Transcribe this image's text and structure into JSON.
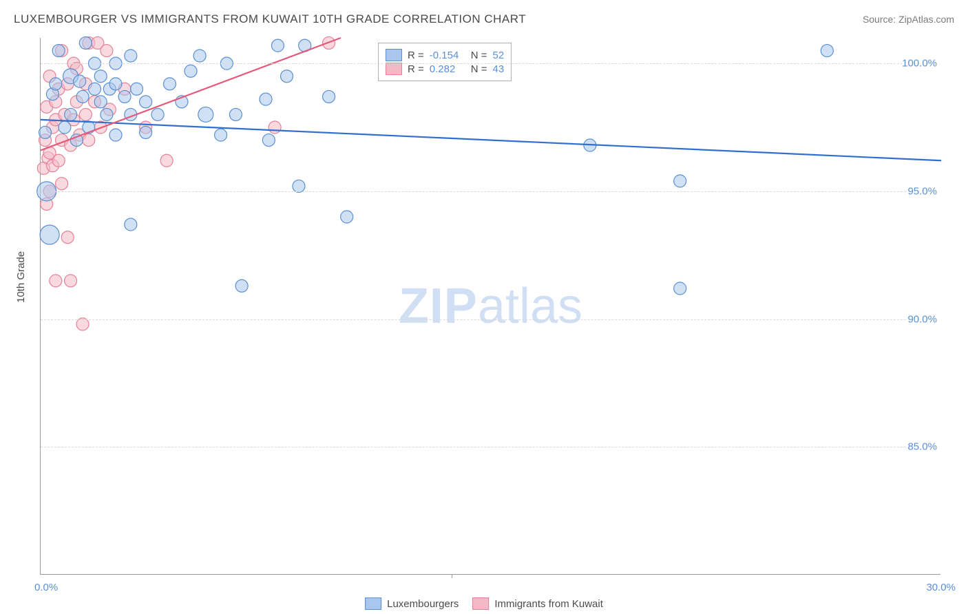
{
  "header": {
    "title": "LUXEMBOURGER VS IMMIGRANTS FROM KUWAIT 10TH GRADE CORRELATION CHART",
    "source": "Source: ZipAtlas.com"
  },
  "ylabel": "10th Grade",
  "watermark": {
    "left": "ZIP",
    "right": "atlas"
  },
  "chart": {
    "type": "scatter",
    "xlim": [
      0,
      30
    ],
    "ylim": [
      80,
      101
    ],
    "xticks": [
      0,
      30
    ],
    "xtick_fmt": [
      "0.0%",
      "30.0%"
    ],
    "yticks": [
      85,
      90,
      95,
      100
    ],
    "ytick_fmt": [
      "85.0%",
      "90.0%",
      "95.0%",
      "100.0%"
    ],
    "xtick_minor": [
      13.7
    ],
    "grid_color": "#d8d8d8",
    "axis_color": "#9a9a9a",
    "background_color": "#ffffff",
    "tick_label_color": "#5b8fd6",
    "series": [
      {
        "name": "Luxembourgers",
        "color_fill": "#a9c7ec",
        "color_stroke": "#5a8fd0",
        "fill_opacity": 0.55,
        "stroke_width": 1.2,
        "marker_r": 9,
        "trend": {
          "x1": 0,
          "y1": 97.8,
          "x2": 30,
          "y2": 96.2,
          "color": "#2f6fd0",
          "width": 2.2
        },
        "stats": {
          "R": "-0.154",
          "N": "52"
        },
        "points": [
          {
            "x": 0.2,
            "y": 95.0,
            "r": 14
          },
          {
            "x": 0.3,
            "y": 93.3,
            "r": 14
          },
          {
            "x": 0.15,
            "y": 97.3,
            "r": 9
          },
          {
            "x": 0.4,
            "y": 98.8,
            "r": 9
          },
          {
            "x": 0.5,
            "y": 99.2,
            "r": 9
          },
          {
            "x": 0.6,
            "y": 100.5,
            "r": 9
          },
          {
            "x": 0.8,
            "y": 97.5,
            "r": 9
          },
          {
            "x": 1.0,
            "y": 98.0,
            "r": 9
          },
          {
            "x": 1.0,
            "y": 99.5,
            "r": 11
          },
          {
            "x": 1.2,
            "y": 97.0,
            "r": 9
          },
          {
            "x": 1.3,
            "y": 99.3,
            "r": 9
          },
          {
            "x": 1.4,
            "y": 98.7,
            "r": 9
          },
          {
            "x": 1.5,
            "y": 100.8,
            "r": 9
          },
          {
            "x": 1.6,
            "y": 97.5,
            "r": 9
          },
          {
            "x": 1.8,
            "y": 99.0,
            "r": 9
          },
          {
            "x": 1.8,
            "y": 100.0,
            "r": 9
          },
          {
            "x": 2.0,
            "y": 98.5,
            "r": 9
          },
          {
            "x": 2.0,
            "y": 99.5,
            "r": 9
          },
          {
            "x": 2.2,
            "y": 98.0,
            "r": 9
          },
          {
            "x": 2.3,
            "y": 99.0,
            "r": 9
          },
          {
            "x": 2.5,
            "y": 100.0,
            "r": 9
          },
          {
            "x": 2.5,
            "y": 99.2,
            "r": 9
          },
          {
            "x": 2.5,
            "y": 97.2,
            "r": 9
          },
          {
            "x": 2.8,
            "y": 98.7,
            "r": 9
          },
          {
            "x": 3.0,
            "y": 100.3,
            "r": 9
          },
          {
            "x": 3.0,
            "y": 98.0,
            "r": 9
          },
          {
            "x": 3.0,
            "y": 93.7,
            "r": 9
          },
          {
            "x": 3.2,
            "y": 99.0,
            "r": 9
          },
          {
            "x": 3.5,
            "y": 98.5,
            "r": 9
          },
          {
            "x": 3.5,
            "y": 97.3,
            "r": 9
          },
          {
            "x": 3.9,
            "y": 98.0,
            "r": 9
          },
          {
            "x": 4.3,
            "y": 99.2,
            "r": 9
          },
          {
            "x": 4.7,
            "y": 98.5,
            "r": 9
          },
          {
            "x": 5.0,
            "y": 99.7,
            "r": 9
          },
          {
            "x": 5.3,
            "y": 100.3,
            "r": 9
          },
          {
            "x": 5.5,
            "y": 98.0,
            "r": 11
          },
          {
            "x": 6.0,
            "y": 97.2,
            "r": 9
          },
          {
            "x": 6.2,
            "y": 100.0,
            "r": 9
          },
          {
            "x": 6.5,
            "y": 98.0,
            "r": 9
          },
          {
            "x": 6.7,
            "y": 91.3,
            "r": 9
          },
          {
            "x": 7.5,
            "y": 98.6,
            "r": 9
          },
          {
            "x": 7.6,
            "y": 97.0,
            "r": 9
          },
          {
            "x": 7.9,
            "y": 100.7,
            "r": 9
          },
          {
            "x": 8.2,
            "y": 99.5,
            "r": 9
          },
          {
            "x": 8.6,
            "y": 95.2,
            "r": 9
          },
          {
            "x": 8.8,
            "y": 100.7,
            "r": 9
          },
          {
            "x": 9.6,
            "y": 98.7,
            "r": 9
          },
          {
            "x": 10.2,
            "y": 94.0,
            "r": 9
          },
          {
            "x": 18.3,
            "y": 96.8,
            "r": 9
          },
          {
            "x": 21.3,
            "y": 95.4,
            "r": 9
          },
          {
            "x": 21.3,
            "y": 91.2,
            "r": 9
          },
          {
            "x": 26.2,
            "y": 100.5,
            "r": 9
          }
        ]
      },
      {
        "name": "Immigrants from Kuwait",
        "color_fill": "#f4b9c6",
        "color_stroke": "#e48195",
        "fill_opacity": 0.55,
        "stroke_width": 1.2,
        "marker_r": 9,
        "trend": {
          "x1": 0,
          "y1": 96.6,
          "x2": 10,
          "y2": 101.0,
          "color": "#e35a7a",
          "width": 2.2
        },
        "stats": {
          "R": "0.282",
          "N": "43"
        },
        "points": [
          {
            "x": 0.1,
            "y": 95.9,
            "r": 9
          },
          {
            "x": 0.15,
            "y": 97.0,
            "r": 9
          },
          {
            "x": 0.2,
            "y": 98.3,
            "r": 9
          },
          {
            "x": 0.2,
            "y": 94.5,
            "r": 9
          },
          {
            "x": 0.25,
            "y": 96.3,
            "r": 9
          },
          {
            "x": 0.3,
            "y": 95.0,
            "r": 9
          },
          {
            "x": 0.3,
            "y": 96.5,
            "r": 9
          },
          {
            "x": 0.3,
            "y": 99.5,
            "r": 9
          },
          {
            "x": 0.4,
            "y": 97.5,
            "r": 9
          },
          {
            "x": 0.4,
            "y": 96.0,
            "r": 9
          },
          {
            "x": 0.5,
            "y": 97.8,
            "r": 9
          },
          {
            "x": 0.5,
            "y": 98.5,
            "r": 9
          },
          {
            "x": 0.5,
            "y": 91.5,
            "r": 9
          },
          {
            "x": 0.6,
            "y": 99.0,
            "r": 9
          },
          {
            "x": 0.6,
            "y": 96.2,
            "r": 9
          },
          {
            "x": 0.7,
            "y": 100.5,
            "r": 9
          },
          {
            "x": 0.7,
            "y": 97.0,
            "r": 9
          },
          {
            "x": 0.7,
            "y": 95.3,
            "r": 9
          },
          {
            "x": 0.8,
            "y": 98.0,
            "r": 9
          },
          {
            "x": 0.9,
            "y": 99.2,
            "r": 9
          },
          {
            "x": 0.9,
            "y": 93.2,
            "r": 9
          },
          {
            "x": 1.0,
            "y": 96.8,
            "r": 9
          },
          {
            "x": 1.0,
            "y": 91.5,
            "r": 9
          },
          {
            "x": 1.1,
            "y": 97.8,
            "r": 9
          },
          {
            "x": 1.1,
            "y": 100.0,
            "r": 9
          },
          {
            "x": 1.2,
            "y": 98.5,
            "r": 9
          },
          {
            "x": 1.2,
            "y": 99.8,
            "r": 9
          },
          {
            "x": 1.3,
            "y": 97.2,
            "r": 9
          },
          {
            "x": 1.4,
            "y": 89.8,
            "r": 9
          },
          {
            "x": 1.5,
            "y": 98.0,
            "r": 9
          },
          {
            "x": 1.5,
            "y": 99.2,
            "r": 9
          },
          {
            "x": 1.6,
            "y": 97.0,
            "r": 9
          },
          {
            "x": 1.6,
            "y": 100.8,
            "r": 9
          },
          {
            "x": 1.8,
            "y": 98.5,
            "r": 9
          },
          {
            "x": 1.9,
            "y": 100.8,
            "r": 9
          },
          {
            "x": 2.0,
            "y": 97.5,
            "r": 9
          },
          {
            "x": 2.2,
            "y": 100.5,
            "r": 9
          },
          {
            "x": 2.3,
            "y": 98.2,
            "r": 9
          },
          {
            "x": 2.8,
            "y": 99.0,
            "r": 9
          },
          {
            "x": 3.5,
            "y": 97.5,
            "r": 9
          },
          {
            "x": 4.2,
            "y": 96.2,
            "r": 9
          },
          {
            "x": 7.8,
            "y": 97.5,
            "r": 9
          },
          {
            "x": 9.6,
            "y": 100.8,
            "r": 9
          }
        ]
      }
    ]
  },
  "stats_legend": {
    "row1": {
      "r_label": "R =",
      "r_val": "-0.154",
      "n_label": "N =",
      "n_val": "52"
    },
    "row2": {
      "r_label": "R =",
      "r_val": "0.282",
      "n_label": "N =",
      "n_val": "43"
    }
  },
  "bottom_legend": {
    "item1": "Luxembourgers",
    "item2": "Immigrants from Kuwait"
  },
  "colors": {
    "blue_fill": "#a9c7ec",
    "blue_stroke": "#5a8fd0",
    "pink_fill": "#f4b9c6",
    "pink_stroke": "#e48195"
  }
}
